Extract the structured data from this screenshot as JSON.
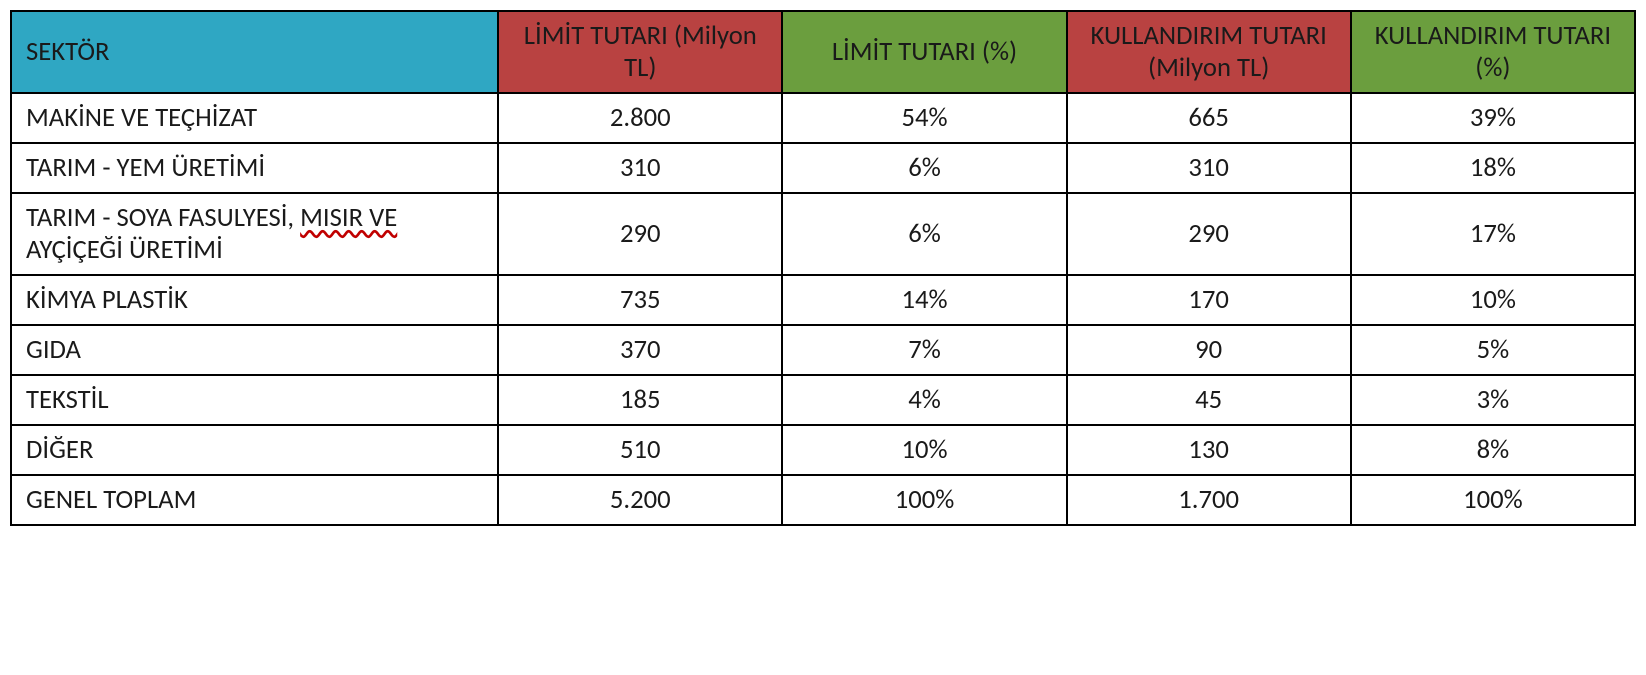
{
  "table": {
    "type": "table",
    "colors": {
      "header_sector_bg": "#2fa7c3",
      "header_red_bg": "#b94241",
      "header_green_bg": "#6b9e3e",
      "header_text": "#1a1a1a",
      "body_bg": "#ffffff",
      "body_text": "#1a1a1a",
      "border": "#000000",
      "wavy_underline": "#c00000"
    },
    "typography": {
      "header_fontsize_pt": 20,
      "body_fontsize_pt": 20,
      "font_family": "Calibri"
    },
    "columns": [
      {
        "key": "sector",
        "label": "SEKTÖR",
        "bg_key": "header_sector_bg",
        "align": "left",
        "width_pct": 30
      },
      {
        "key": "limit_amount",
        "label": "LİMİT TUTARI (Milyon TL)",
        "bg_key": "header_red_bg",
        "align": "center",
        "width_pct": 17.5
      },
      {
        "key": "limit_pct",
        "label": "LİMİT TUTARI (%)",
        "bg_key": "header_green_bg",
        "align": "center",
        "width_pct": 17.5
      },
      {
        "key": "usage_amount",
        "label": "KULLANDIRIM TUTARI (Milyon TL)",
        "bg_key": "header_red_bg",
        "align": "center",
        "width_pct": 17.5
      },
      {
        "key": "usage_pct",
        "label": "KULLANDIRIM TUTARI (%)",
        "bg_key": "header_green_bg",
        "align": "center",
        "width_pct": 17.5
      }
    ],
    "rows": [
      {
        "sector": "MAKİNE VE TEÇHİZAT",
        "limit_amount": "2.800",
        "limit_pct": "54%",
        "usage_amount": "665",
        "usage_pct": "39%"
      },
      {
        "sector": "TARIM - YEM ÜRETİMİ",
        "limit_amount": "310",
        "limit_pct": "6%",
        "usage_amount": "310",
        "usage_pct": "18%"
      },
      {
        "sector_parts": {
          "prefix": "TARIM - SOYA FASULYESİ, ",
          "underlined": "MISIR VE ",
          "suffix": "AYÇİÇEĞİ ÜRETİMİ"
        },
        "limit_amount": "290",
        "limit_pct": "6%",
        "usage_amount": "290",
        "usage_pct": "17%"
      },
      {
        "sector": "KİMYA PLASTİK",
        "limit_amount": "735",
        "limit_pct": "14%",
        "usage_amount": "170",
        "usage_pct": "10%"
      },
      {
        "sector": "GIDA",
        "limit_amount": "370",
        "limit_pct": "7%",
        "usage_amount": "90",
        "usage_pct": "5%"
      },
      {
        "sector": "TEKSTİL",
        "limit_amount": "185",
        "limit_pct": "4%",
        "usage_amount": "45",
        "usage_pct": "3%"
      },
      {
        "sector": "DİĞER",
        "limit_amount": "510",
        "limit_pct": "10%",
        "usage_amount": "130",
        "usage_pct": "8%"
      },
      {
        "sector": "GENEL TOPLAM",
        "limit_amount": "5.200",
        "limit_pct": "100%",
        "usage_amount": "1.700",
        "usage_pct": "100%"
      }
    ]
  }
}
